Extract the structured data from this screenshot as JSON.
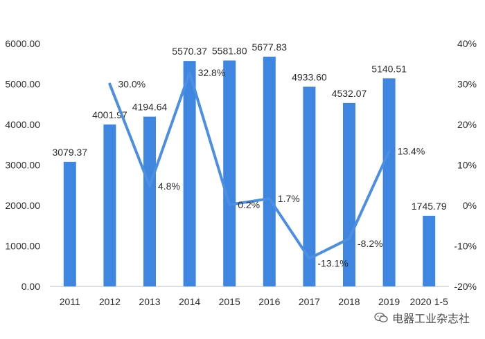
{
  "chart_data": {
    "type": "bar+line",
    "categories": [
      "2011",
      "2012",
      "2013",
      "2014",
      "2015",
      "2016",
      "2017",
      "2018",
      "2019",
      "2020 1-5"
    ],
    "series": [
      {
        "name": "value",
        "type": "bar",
        "axis": "left",
        "values": [
          3079.37,
          4001.97,
          4194.64,
          5570.37,
          5581.8,
          5677.83,
          4933.6,
          4532.07,
          5140.51,
          1745.79
        ],
        "labels": [
          "3079.37",
          "4001.97",
          "4194.64",
          "5570.37",
          "5581.80",
          "5677.83",
          "4933.60",
          "4532.07",
          "5140.51",
          "1745.79"
        ]
      },
      {
        "name": "growth",
        "type": "line",
        "axis": "right",
        "values": [
          null,
          30.0,
          4.8,
          32.8,
          0.2,
          1.7,
          -13.1,
          -8.2,
          13.4,
          null
        ],
        "labels": [
          null,
          "30.0%",
          "4.8%",
          "32.8%",
          "0.2%",
          "1.7%",
          "-13.1%",
          "-8.2%",
          "13.4%",
          null
        ]
      }
    ],
    "y_left": {
      "min": 0,
      "max": 6000,
      "ticks": [
        0,
        1000,
        2000,
        3000,
        4000,
        5000,
        6000
      ],
      "tick_labels": [
        "0.00",
        "1000.00",
        "2000.00",
        "3000.00",
        "4000.00",
        "5000.00",
        "6000.00"
      ]
    },
    "y_right": {
      "min": -20,
      "max": 40,
      "ticks": [
        -20,
        -10,
        0,
        10,
        20,
        30,
        40
      ],
      "tick_labels": [
        "-20%",
        "-10%",
        "0%",
        "10%",
        "20%",
        "30%",
        "40%"
      ]
    },
    "colors": {
      "bar": "#3f86e0",
      "line": "#4a8fe3",
      "axis": "#bfbfbf"
    },
    "grid": false,
    "legend": "none"
  },
  "watermark": {
    "text": "电器工业杂志社",
    "icon": "wechat-icon"
  }
}
